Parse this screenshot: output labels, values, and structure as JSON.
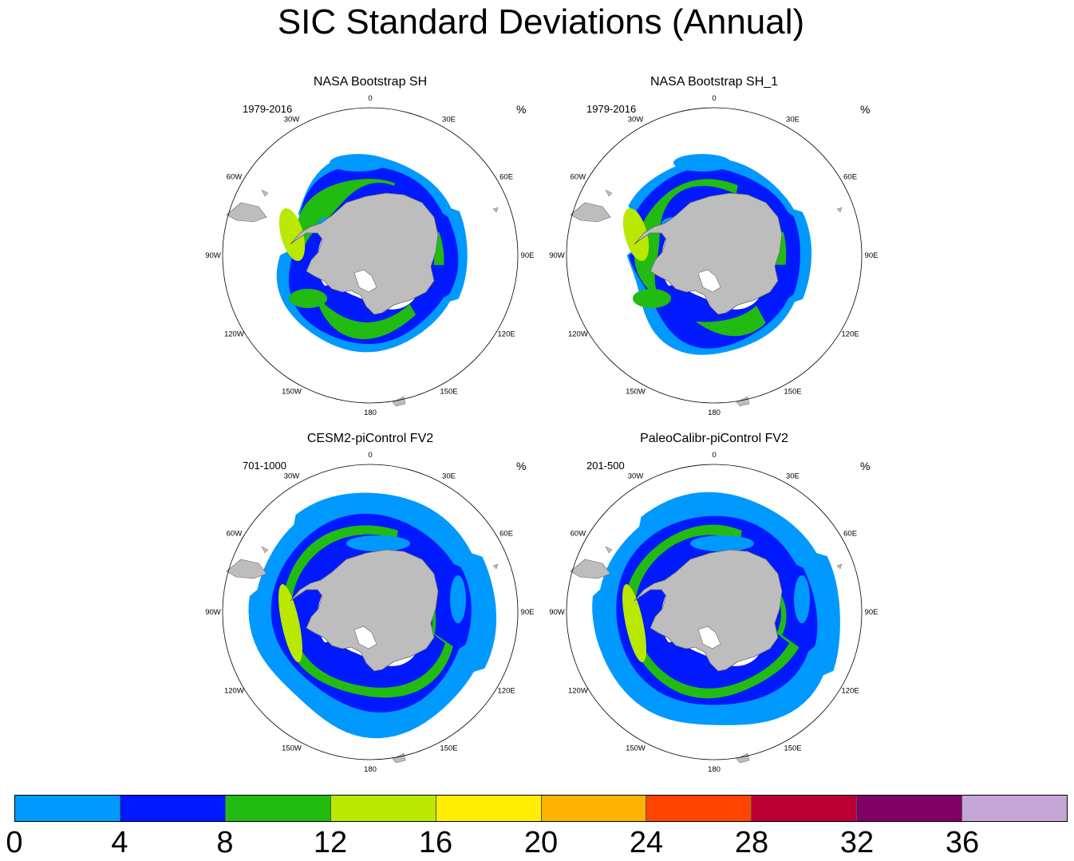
{
  "title": "SIC Standard Deviations (Annual)",
  "unit": "%",
  "panels": [
    {
      "title": "NASA Bootstrap SH",
      "period": "1979-2016",
      "variant": 0
    },
    {
      "title": "NASA Bootstrap SH_1",
      "period": "1979-2016",
      "variant": 0
    },
    {
      "title": "CESM2-piControl FV2",
      "period": "701-1000",
      "variant": 1
    },
    {
      "title": "PaleoCalibr-piControl FV2",
      "period": "201-500",
      "variant": 1
    }
  ],
  "longitude_labels": [
    "0",
    "30E",
    "60E",
    "90E",
    "120E",
    "150E",
    "180",
    "150W",
    "120W",
    "90W",
    "60W",
    "30W"
  ],
  "colorbar": {
    "levels": [
      "0",
      "4",
      "8",
      "12",
      "16",
      "20",
      "24",
      "28",
      "32",
      "36"
    ],
    "colors": [
      "#0099ff",
      "#0019ff",
      "#22bb11",
      "#bbe800",
      "#ffee00",
      "#ffb300",
      "#ff4400",
      "#bb0033",
      "#7f0066",
      "#c4a6d6"
    ]
  }
}
